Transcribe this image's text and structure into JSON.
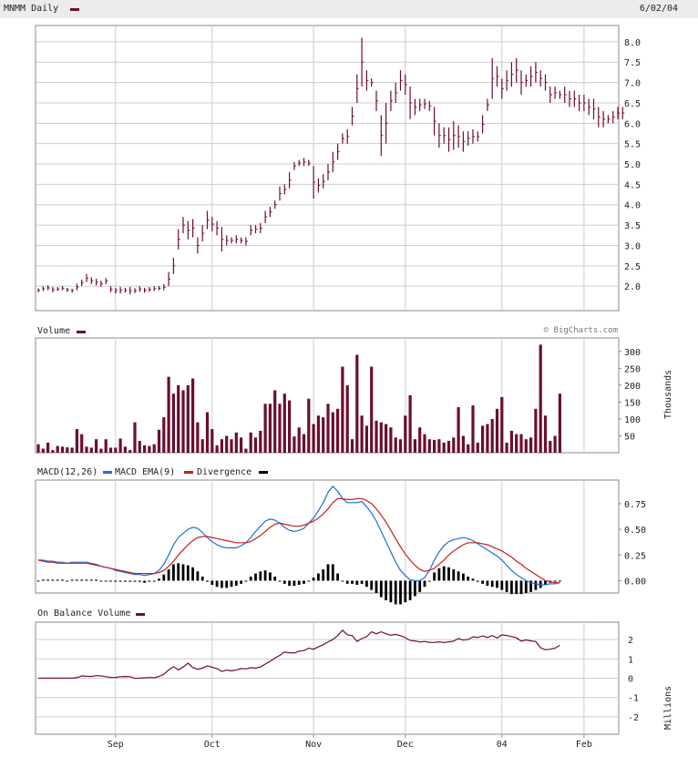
{
  "header": {
    "title": "MNMM Daily",
    "date": "6/02/04"
  },
  "colors": {
    "price": "#6b0f2b",
    "macd": "#1a6fd6",
    "ema": "#c81a1a",
    "divergence": "#000000",
    "obv": "#6b0f2b",
    "grid": "#cccccc"
  },
  "chart_data": [
    {
      "type": "ohlc",
      "title": "MNMM Daily",
      "ylim": [
        1.4,
        8.4
      ],
      "yticks": [
        "2.0",
        "2.5",
        "3.0",
        "3.5",
        "4.0",
        "4.5",
        "5.0",
        "5.5",
        "6.0",
        "6.5",
        "7.0",
        "7.5",
        "8.0"
      ],
      "x_labels": [
        "Sep",
        "Oct",
        "Nov",
        "Dec",
        "04",
        "Feb"
      ],
      "x_label_index": [
        16,
        36,
        57,
        76,
        96,
        113
      ],
      "grid": true,
      "bars": [
        [
          1.85,
          1.95
        ],
        [
          1.88,
          2.0
        ],
        [
          1.9,
          2.02
        ],
        [
          1.85,
          1.98
        ],
        [
          1.88,
          1.98
        ],
        [
          1.9,
          2.0
        ],
        [
          1.86,
          1.96
        ],
        [
          1.84,
          1.94
        ],
        [
          1.9,
          2.06
        ],
        [
          2.0,
          2.16
        ],
        [
          2.1,
          2.3
        ],
        [
          2.05,
          2.22
        ],
        [
          2.02,
          2.18
        ],
        [
          1.98,
          2.14
        ],
        [
          2.05,
          2.2
        ],
        [
          1.85,
          2.0
        ],
        [
          1.82,
          1.96
        ],
        [
          1.82,
          1.98
        ],
        [
          1.84,
          1.96
        ],
        [
          1.8,
          1.98
        ],
        [
          1.83,
          1.95
        ],
        [
          1.86,
          2.0
        ],
        [
          1.84,
          1.96
        ],
        [
          1.86,
          1.98
        ],
        [
          1.88,
          2.0
        ],
        [
          1.9,
          2.0
        ],
        [
          1.9,
          2.05
        ],
        [
          2.0,
          2.35
        ],
        [
          2.3,
          2.7
        ],
        [
          2.9,
          3.4
        ],
        [
          3.3,
          3.7
        ],
        [
          3.15,
          3.6
        ],
        [
          3.2,
          3.65
        ],
        [
          2.8,
          3.2
        ],
        [
          3.1,
          3.5
        ],
        [
          3.4,
          3.85
        ],
        [
          3.35,
          3.7
        ],
        [
          3.25,
          3.6
        ],
        [
          2.85,
          3.45
        ],
        [
          3.0,
          3.25
        ],
        [
          3.05,
          3.2
        ],
        [
          3.05,
          3.25
        ],
        [
          3.05,
          3.2
        ],
        [
          3.0,
          3.2
        ],
        [
          3.25,
          3.5
        ],
        [
          3.3,
          3.5
        ],
        [
          3.3,
          3.55
        ],
        [
          3.55,
          3.85
        ],
        [
          3.7,
          3.95
        ],
        [
          3.9,
          4.1
        ],
        [
          4.1,
          4.45
        ],
        [
          4.25,
          4.5
        ],
        [
          4.4,
          4.8
        ],
        [
          4.85,
          5.05
        ],
        [
          4.95,
          5.1
        ],
        [
          4.95,
          5.15
        ],
        [
          4.95,
          5.1
        ],
        [
          4.15,
          4.95
        ],
        [
          4.3,
          4.65
        ],
        [
          4.4,
          4.75
        ],
        [
          4.6,
          5.0
        ],
        [
          4.8,
          5.3
        ],
        [
          5.1,
          5.5
        ],
        [
          5.5,
          5.75
        ],
        [
          5.5,
          5.85
        ],
        [
          5.95,
          6.4
        ],
        [
          6.5,
          7.2
        ],
        [
          6.9,
          8.1
        ],
        [
          6.8,
          7.3
        ],
        [
          6.9,
          7.1
        ],
        [
          6.3,
          6.8
        ],
        [
          5.2,
          6.2
        ],
        [
          5.5,
          6.5
        ],
        [
          6.3,
          6.8
        ],
        [
          6.5,
          7.0
        ],
        [
          6.8,
          7.3
        ],
        [
          6.7,
          7.2
        ],
        [
          6.1,
          6.9
        ],
        [
          6.2,
          6.6
        ],
        [
          6.3,
          6.6
        ],
        [
          6.35,
          6.6
        ],
        [
          6.3,
          6.55
        ],
        [
          5.7,
          6.4
        ],
        [
          5.4,
          6.0
        ],
        [
          5.5,
          5.9
        ],
        [
          5.3,
          5.9
        ],
        [
          5.35,
          6.05
        ],
        [
          5.4,
          5.95
        ],
        [
          5.3,
          5.8
        ],
        [
          5.45,
          5.8
        ],
        [
          5.5,
          5.85
        ],
        [
          5.55,
          5.8
        ],
        [
          5.75,
          6.2
        ],
        [
          6.3,
          6.6
        ],
        [
          6.6,
          7.6
        ],
        [
          6.9,
          7.4
        ],
        [
          6.6,
          7.1
        ],
        [
          6.8,
          7.3
        ],
        [
          6.9,
          7.5
        ],
        [
          7.0,
          7.6
        ],
        [
          6.7,
          7.3
        ],
        [
          6.9,
          7.2
        ],
        [
          6.9,
          7.4
        ],
        [
          7.0,
          7.5
        ],
        [
          6.9,
          7.3
        ],
        [
          6.8,
          7.2
        ],
        [
          6.5,
          6.9
        ],
        [
          6.6,
          6.9
        ],
        [
          6.6,
          6.8
        ],
        [
          6.5,
          6.9
        ],
        [
          6.4,
          6.8
        ],
        [
          6.4,
          6.8
        ],
        [
          6.3,
          6.7
        ],
        [
          6.3,
          6.7
        ],
        [
          6.2,
          6.6
        ],
        [
          6.1,
          6.6
        ],
        [
          5.9,
          6.4
        ],
        [
          5.9,
          6.3
        ],
        [
          6.0,
          6.2
        ],
        [
          6.0,
          6.3
        ],
        [
          6.1,
          6.4
        ],
        [
          6.1,
          6.4
        ]
      ]
    },
    {
      "type": "bar",
      "title": "Volume",
      "ylabel": "Thousands",
      "yticks": [
        "50",
        "100",
        "150",
        "200",
        "250",
        "300"
      ],
      "ylim": [
        0,
        340
      ],
      "values": [
        25,
        12,
        30,
        8,
        20,
        18,
        16,
        15,
        70,
        55,
        18,
        15,
        40,
        12,
        40,
        15,
        15,
        42,
        18,
        8,
        90,
        35,
        22,
        20,
        25,
        68,
        105,
        225,
        175,
        200,
        185,
        200,
        220,
        90,
        40,
        120,
        70,
        22,
        40,
        50,
        40,
        60,
        45,
        12,
        60,
        45,
        65,
        145,
        145,
        185,
        145,
        175,
        155,
        48,
        75,
        55,
        160,
        85,
        110,
        105,
        145,
        120,
        130,
        255,
        200,
        40,
        290,
        110,
        80,
        255,
        95,
        90,
        85,
        75,
        45,
        40,
        110,
        170,
        40,
        75,
        55,
        40,
        38,
        40,
        30,
        35,
        45,
        135,
        50,
        25,
        140,
        30,
        80,
        85,
        100,
        130,
        165,
        30,
        65,
        55,
        55,
        40,
        45,
        130,
        320,
        110,
        35,
        50,
        175
      ]
    },
    {
      "type": "line",
      "title": "MACD(12,26)",
      "legend": [
        "MACD EMA(9)",
        "Divergence"
      ],
      "yticks": [
        "0.00",
        "0.25",
        "0.50",
        "0.75"
      ],
      "ylim": [
        -0.12,
        0.98
      ],
      "series": [
        {
          "name": "MACD(12,26)",
          "values": [
            0.2,
            0.2,
            0.19,
            0.19,
            0.18,
            0.18,
            0.17,
            0.18,
            0.18,
            0.18,
            0.18,
            0.17,
            0.16,
            0.14,
            0.13,
            0.12,
            0.1,
            0.09,
            0.08,
            0.07,
            0.06,
            0.06,
            0.05,
            0.06,
            0.07,
            0.1,
            0.16,
            0.25,
            0.35,
            0.42,
            0.46,
            0.5,
            0.52,
            0.51,
            0.47,
            0.42,
            0.38,
            0.35,
            0.33,
            0.32,
            0.32,
            0.32,
            0.34,
            0.37,
            0.42,
            0.48,
            0.53,
            0.58,
            0.6,
            0.59,
            0.56,
            0.52,
            0.49,
            0.48,
            0.49,
            0.51,
            0.56,
            0.61,
            0.68,
            0.76,
            0.86,
            0.92,
            0.87,
            0.8,
            0.76,
            0.76,
            0.76,
            0.77,
            0.72,
            0.66,
            0.58,
            0.48,
            0.38,
            0.28,
            0.18,
            0.1,
            0.05,
            0.01,
            0.0,
            0.0,
            0.03,
            0.1,
            0.2,
            0.28,
            0.34,
            0.38,
            0.4,
            0.41,
            0.42,
            0.41,
            0.39,
            0.36,
            0.33,
            0.3,
            0.27,
            0.24,
            0.2,
            0.15,
            0.1,
            0.06,
            0.03,
            0.0,
            -0.02,
            -0.03,
            -0.04,
            -0.04,
            -0.03,
            -0.03,
            -0.02
          ]
        },
        {
          "name": "EMA(9)",
          "values": [
            0.2,
            0.19,
            0.18,
            0.18,
            0.17,
            0.17,
            0.17,
            0.17,
            0.17,
            0.17,
            0.17,
            0.16,
            0.15,
            0.14,
            0.13,
            0.12,
            0.11,
            0.1,
            0.09,
            0.08,
            0.07,
            0.07,
            0.07,
            0.07,
            0.07,
            0.08,
            0.1,
            0.14,
            0.19,
            0.25,
            0.3,
            0.35,
            0.39,
            0.42,
            0.43,
            0.43,
            0.42,
            0.41,
            0.4,
            0.39,
            0.38,
            0.37,
            0.37,
            0.37,
            0.38,
            0.41,
            0.44,
            0.48,
            0.52,
            0.55,
            0.56,
            0.55,
            0.54,
            0.53,
            0.53,
            0.54,
            0.56,
            0.58,
            0.61,
            0.65,
            0.7,
            0.76,
            0.8,
            0.8,
            0.79,
            0.79,
            0.8,
            0.8,
            0.78,
            0.75,
            0.7,
            0.64,
            0.57,
            0.49,
            0.41,
            0.33,
            0.26,
            0.2,
            0.15,
            0.11,
            0.09,
            0.1,
            0.12,
            0.16,
            0.2,
            0.25,
            0.29,
            0.32,
            0.35,
            0.37,
            0.37,
            0.37,
            0.36,
            0.35,
            0.33,
            0.31,
            0.29,
            0.26,
            0.23,
            0.19,
            0.16,
            0.12,
            0.09,
            0.06,
            0.03,
            0.0,
            -0.01,
            -0.02,
            -0.02
          ]
        },
        {
          "name": "Divergence",
          "values": [
            0.0,
            0.01,
            0.01,
            0.01,
            0.01,
            0.01,
            0.0,
            0.01,
            0.01,
            0.01,
            0.01,
            0.01,
            0.01,
            0.0,
            0.0,
            0.0,
            -0.01,
            -0.01,
            -0.01,
            -0.01,
            -0.01,
            -0.01,
            -0.02,
            -0.01,
            0.0,
            0.02,
            0.06,
            0.11,
            0.16,
            0.17,
            0.16,
            0.15,
            0.13,
            0.09,
            0.04,
            -0.01,
            -0.04,
            -0.06,
            -0.07,
            -0.07,
            -0.06,
            -0.05,
            -0.03,
            0.0,
            0.04,
            0.07,
            0.09,
            0.1,
            0.08,
            0.04,
            0.0,
            -0.03,
            -0.05,
            -0.05,
            -0.04,
            -0.03,
            0.0,
            0.03,
            0.07,
            0.11,
            0.16,
            0.16,
            0.07,
            0.0,
            -0.03,
            -0.03,
            -0.04,
            -0.03,
            -0.06,
            -0.09,
            -0.12,
            -0.16,
            -0.19,
            -0.21,
            -0.23,
            -0.23,
            -0.21,
            -0.19,
            -0.15,
            -0.11,
            -0.06,
            0.0,
            0.08,
            0.12,
            0.14,
            0.13,
            0.11,
            0.09,
            0.07,
            0.04,
            0.02,
            -0.01,
            -0.03,
            -0.05,
            -0.06,
            -0.07,
            -0.09,
            -0.11,
            -0.13,
            -0.13,
            -0.13,
            -0.12,
            -0.11,
            -0.09,
            -0.07,
            -0.04,
            -0.02,
            -0.01,
            0.0
          ]
        }
      ]
    },
    {
      "type": "line",
      "title": "On Balance Volume",
      "ylabel": "Millions",
      "yticks": [
        "2",
        "1",
        "0",
        "-1",
        "-2"
      ],
      "ylim": [
        -2.9,
        2.9
      ],
      "values": [
        0,
        0,
        0,
        0,
        0,
        0,
        0,
        0,
        0.03,
        0.12,
        0.1,
        0.09,
        0.13,
        0.12,
        0.08,
        0.04,
        0.04,
        0.08,
        0.09,
        0.08,
        -0.01,
        0.0,
        0.02,
        0.04,
        0.02,
        0.09,
        0.2,
        0.43,
        0.6,
        0.43,
        0.58,
        0.78,
        0.55,
        0.46,
        0.52,
        0.64,
        0.57,
        0.5,
        0.35,
        0.42,
        0.38,
        0.42,
        0.5,
        0.48,
        0.54,
        0.52,
        0.58,
        0.73,
        0.87,
        1.04,
        1.18,
        1.35,
        1.32,
        1.3,
        1.4,
        1.43,
        1.55,
        1.5,
        1.62,
        1.73,
        1.88,
        2.0,
        2.2,
        2.48,
        2.25,
        2.2,
        1.9,
        2.05,
        2.15,
        2.4,
        2.3,
        2.4,
        2.3,
        2.22,
        2.27,
        2.2,
        2.1,
        1.95,
        1.93,
        1.87,
        1.9,
        1.86,
        1.85,
        1.88,
        1.85,
        1.88,
        1.92,
        2.05,
        1.97,
        2.0,
        2.14,
        2.11,
        2.19,
        2.11,
        2.21,
        2.08,
        2.24,
        2.21,
        2.15,
        2.09,
        1.92,
        1.98,
        1.93,
        1.9,
        1.58,
        1.47,
        1.5,
        1.55,
        1.7
      ]
    }
  ],
  "labels": {
    "volume": "Volume",
    "volume_unit": "Thousands",
    "copyright": "© BigCharts.com",
    "macd": "MACD(12,26)",
    "macd_ema": "MACD EMA(9)",
    "divergence": "Divergence",
    "obv": "On Balance Volume",
    "obv_unit": "Millions"
  }
}
